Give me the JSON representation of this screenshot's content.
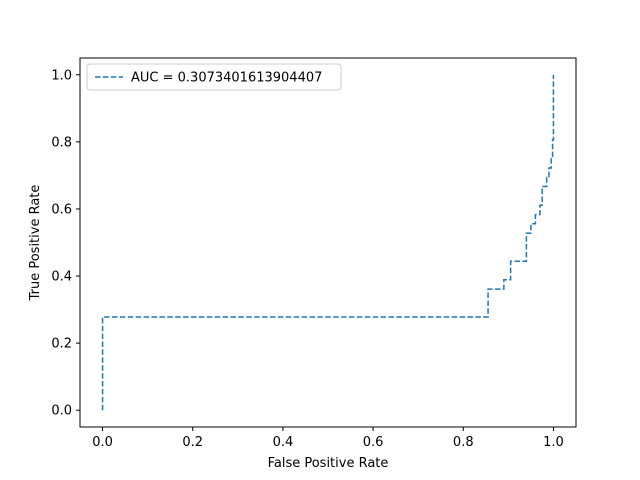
{
  "chart_data": {
    "type": "line",
    "xlabel": "False Positive Rate",
    "ylabel": "True Positive Rate",
    "xlim": [
      -0.05,
      1.05
    ],
    "ylim": [
      -0.05,
      1.05
    ],
    "xticks": [
      0.0,
      0.2,
      0.4,
      0.6,
      0.8,
      1.0
    ],
    "yticks": [
      0.0,
      0.2,
      0.4,
      0.6,
      0.8,
      1.0
    ],
    "xtick_labels": [
      "0.0",
      "0.2",
      "0.4",
      "0.6",
      "0.8",
      "1.0"
    ],
    "ytick_labels": [
      "0.0",
      "0.2",
      "0.4",
      "0.6",
      "0.8",
      "1.0"
    ],
    "grid": false,
    "legend_position": "top-left",
    "series": [
      {
        "name": "AUC = 0.3073401613904407",
        "color": "#1f77b4",
        "line_style": "dashed",
        "x": [
          0.0,
          0.0,
          0.0,
          0.855,
          0.855,
          0.89,
          0.89,
          0.905,
          0.905,
          0.94,
          0.94,
          0.95,
          0.95,
          0.96,
          0.96,
          0.97,
          0.97,
          0.975,
          0.975,
          0.985,
          0.985,
          0.99,
          0.99,
          0.995,
          0.995,
          0.998,
          0.998,
          1.0,
          1.0
        ],
        "y": [
          0.0,
          0.0,
          0.278,
          0.278,
          0.361,
          0.361,
          0.389,
          0.389,
          0.444,
          0.444,
          0.528,
          0.528,
          0.556,
          0.556,
          0.583,
          0.583,
          0.611,
          0.611,
          0.667,
          0.667,
          0.694,
          0.694,
          0.722,
          0.722,
          0.75,
          0.75,
          0.806,
          0.806,
          1.0
        ]
      }
    ]
  }
}
